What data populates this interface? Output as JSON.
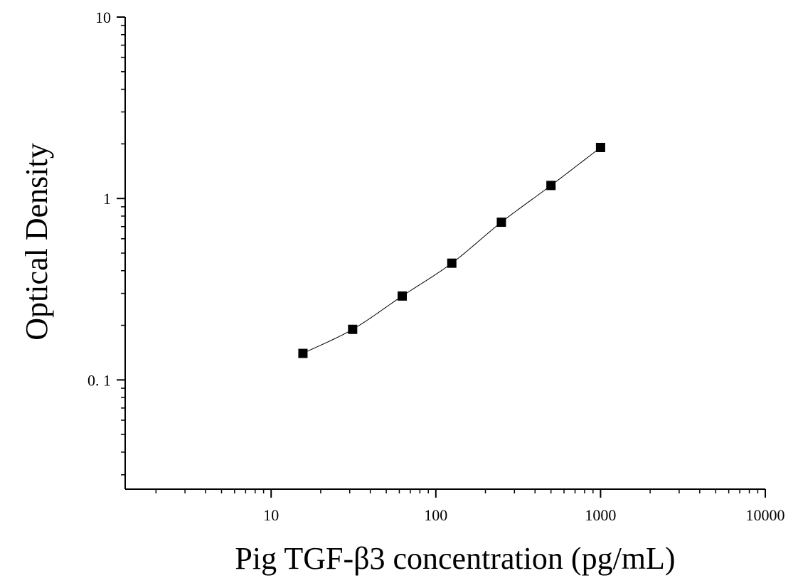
{
  "chart_data": {
    "type": "scatter",
    "x_scale": "log",
    "y_scale": "log",
    "xlabel": "Pig TGF-β3 concentration (pg/mL)",
    "ylabel": "Optical Density",
    "xlim": [
      1.3,
      10000
    ],
    "ylim": [
      0.025,
      10
    ],
    "x_ticks": [
      {
        "value": 10,
        "label": "10"
      },
      {
        "value": 100,
        "label": "100"
      },
      {
        "value": 1000,
        "label": "1000"
      },
      {
        "value": 10000,
        "label": "10000"
      }
    ],
    "y_ticks": [
      {
        "value": 0.1,
        "label": "0. 1"
      },
      {
        "value": 1,
        "label": "1"
      },
      {
        "value": 10,
        "label": "10"
      }
    ],
    "grid": false,
    "marker": "square",
    "marker_color": "#000000",
    "line_color": "#000000",
    "series": [
      {
        "x": [
          15.6,
          31.25,
          62.5,
          125,
          250,
          500,
          1000
        ],
        "y": [
          0.14,
          0.19,
          0.29,
          0.44,
          0.74,
          1.18,
          1.91
        ]
      }
    ]
  }
}
